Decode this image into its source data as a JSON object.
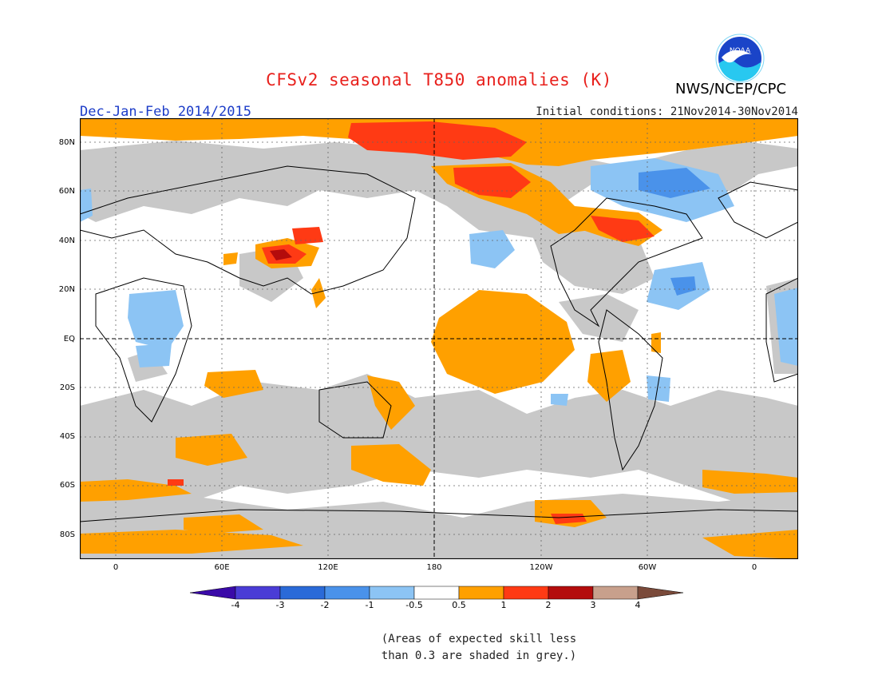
{
  "header": {
    "title": "CFSv2 seasonal T850 anomalies (K)",
    "period": "Dec-Jan-Feb 2014/2015",
    "initial_conditions": "Initial conditions: 21Nov2014-30Nov2014",
    "agency": "NWS/NCEP/CPC",
    "logo_text": "NOAA"
  },
  "map": {
    "lat_labels": [
      "80N",
      "60N",
      "40N",
      "20N",
      "EQ",
      "20S",
      "40S",
      "60S",
      "80S"
    ],
    "lon_labels": [
      "0",
      "60E",
      "120E",
      "180",
      "120W",
      "60W",
      "0"
    ],
    "grid": "dotted",
    "skill_shading_color": "#c8c8c8"
  },
  "colorbar": {
    "colors": [
      "#3a0aa8",
      "#4a3cd6",
      "#2a6ad8",
      "#4a92ea",
      "#8cc4f4",
      "#ffffff",
      "#ffa000",
      "#ff3a14",
      "#b40c0c",
      "#c8a08c",
      "#7a4a3a"
    ],
    "labels": [
      "-4",
      "-3",
      "-2",
      "-1",
      "-0.5",
      "0.5",
      "1",
      "2",
      "3",
      "4"
    ]
  },
  "note": {
    "line1": "(Areas of expected skill less",
    "line2": "than 0.3 are shaded in grey.)"
  }
}
